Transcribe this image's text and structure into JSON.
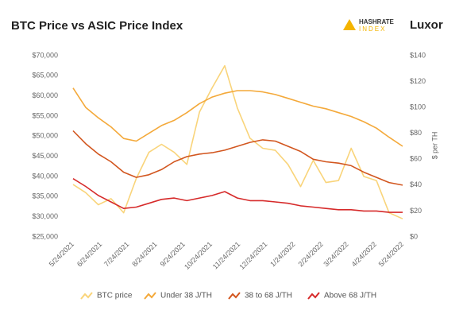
{
  "logos": [
    "HASHRATE",
    "INDEX",
    "Luxor"
  ],
  "chart_data": {
    "type": "line",
    "title": "BTC Price vs ASIC Price Index",
    "y2label": "$ per TH",
    "x": [
      "5/24/2021",
      "6/7/2021",
      "6/21/2021",
      "7/5/2021",
      "7/19/2021",
      "8/2/2021",
      "8/16/2021",
      "8/30/2021",
      "9/13/2021",
      "9/27/2021",
      "10/11/2021",
      "10/25/2021",
      "11/8/2021",
      "11/22/2021",
      "12/6/2021",
      "12/20/2021",
      "1/3/2022",
      "1/17/2022",
      "1/31/2022",
      "2/14/2022",
      "2/28/2022",
      "3/14/2022",
      "3/28/2022",
      "4/11/2022",
      "4/25/2022",
      "5/9/2022",
      "5/24/2022"
    ],
    "series": [
      {
        "name": "BTC price",
        "color": "#f9d47a",
        "values": [
          38000,
          36000,
          33000,
          34500,
          31000,
          39500,
          46000,
          48000,
          46000,
          43000,
          56000,
          62000,
          67500,
          57000,
          49500,
          47000,
          46500,
          43000,
          37500,
          44000,
          38500,
          39000,
          47000,
          40000,
          39000,
          31000,
          29500
        ]
      },
      {
        "name": "Under 38 J/TH",
        "color": "#f4a93a",
        "axis": "y2",
        "values": [
          115,
          100,
          92,
          85,
          76,
          74,
          80,
          86,
          90,
          96,
          103,
          108,
          111,
          113,
          113,
          112,
          110,
          107,
          104,
          101,
          99,
          96,
          93,
          89,
          84,
          77,
          70
        ]
      },
      {
        "name": "38 to 68 J/TH",
        "color": "#d2561f",
        "axis": "y2",
        "values": [
          82,
          72,
          64,
          58,
          50,
          46,
          48,
          52,
          58,
          62,
          64,
          65,
          67,
          70,
          73,
          75,
          74,
          70,
          66,
          60,
          58,
          57,
          55,
          50,
          46,
          42,
          40
        ]
      },
      {
        "name": "Above 68 J/TH",
        "color": "#d62a2a",
        "axis": "y2",
        "values": [
          45,
          39,
          32,
          27,
          22,
          23,
          26,
          29,
          30,
          28,
          30,
          32,
          35,
          30,
          28,
          28,
          27,
          26,
          24,
          23,
          22,
          21,
          21,
          20,
          20,
          19,
          19
        ]
      }
    ],
    "xlim": [
      "5/24/2021",
      "5/24/2022"
    ],
    "xticks": [
      "5/24/2021",
      "6/24/2021",
      "7/24/2021",
      "8/24/2021",
      "9/24/2021",
      "10/24/2021",
      "11/24/2021",
      "12/24/2021",
      "1/24/2022",
      "2/24/2022",
      "3/24/2022",
      "4/24/2022",
      "5/24/2022"
    ],
    "ylim": [
      25000,
      70000
    ],
    "yticks": [
      {
        "value": 25000,
        "label": "$25,000"
      },
      {
        "value": 30000,
        "label": "$30,000"
      },
      {
        "value": 35000,
        "label": "$35,000"
      },
      {
        "value": 40000,
        "label": "$40,000"
      },
      {
        "value": 45000,
        "label": "$45,000"
      },
      {
        "value": 50000,
        "label": "$50,000"
      },
      {
        "value": 55000,
        "label": "$55,000"
      },
      {
        "value": 60000,
        "label": "$60,000"
      },
      {
        "value": 65000,
        "label": "$65,000"
      },
      {
        "value": 70000,
        "label": "$70,000"
      }
    ],
    "y2lim": [
      0,
      140
    ],
    "y2ticks": [
      {
        "value": 0,
        "label": "$0"
      },
      {
        "value": 20,
        "label": "$20"
      },
      {
        "value": 40,
        "label": "$40"
      },
      {
        "value": 60,
        "label": "$60"
      },
      {
        "value": 80,
        "label": "$80"
      },
      {
        "value": 100,
        "label": "$100"
      },
      {
        "value": 120,
        "label": "$120"
      },
      {
        "value": 140,
        "label": "$140"
      }
    ],
    "legend": "bottom"
  }
}
